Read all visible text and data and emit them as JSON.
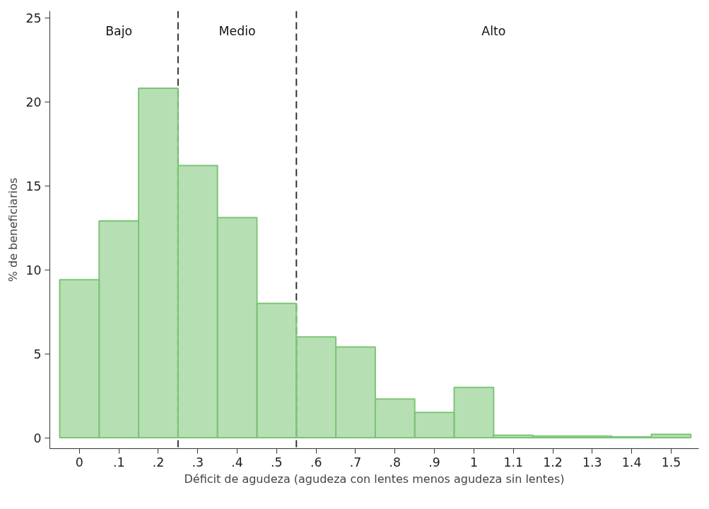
{
  "chart_data": {
    "type": "histogram",
    "xlabel": "Déficit de agudeza (agudeza con lentes menos agudeza sin lentes)",
    "ylabel": "% de beneficiarios",
    "bins": [
      -0.05,
      0.05,
      0.15,
      0.25,
      0.35,
      0.45,
      0.55,
      0.65,
      0.75,
      0.85,
      0.95,
      1.05,
      1.15,
      1.25,
      1.35,
      1.45,
      1.55
    ],
    "values": [
      9.4,
      12.9,
      20.8,
      16.2,
      13.1,
      8.0,
      6.0,
      5.4,
      2.3,
      1.5,
      3.0,
      0.15,
      0.1,
      0.1,
      0.05,
      0.2
    ],
    "color": "#7cc576",
    "xlim": [
      -0.075,
      1.57
    ],
    "ylim": [
      -0.65,
      25.4
    ],
    "xticks": [
      0,
      {
        "value": 0.1,
        "label": ".1"
      },
      {
        "value": 0.2,
        "label": ".2"
      },
      {
        "value": 0.3,
        "label": ".3"
      },
      {
        "value": 0.4,
        "label": ".4"
      },
      {
        "value": 0.5,
        "label": ".5"
      },
      {
        "value": 0.6,
        "label": ".6"
      },
      {
        "value": 0.7,
        "label": ".7"
      },
      {
        "value": 0.8,
        "label": ".8"
      },
      {
        "value": 0.9,
        "label": ".9"
      },
      1,
      {
        "value": 1.1,
        "label": "1.1"
      },
      {
        "value": 1.2,
        "label": "1.2"
      },
      {
        "value": 1.3,
        "label": "1.3"
      },
      {
        "value": 1.4,
        "label": "1.4"
      },
      {
        "value": 1.5,
        "label": "1.5"
      }
    ],
    "yticks": [
      0,
      5,
      10,
      15,
      20,
      25
    ],
    "ref_lines": [
      {
        "axis": "x",
        "value": 0.25,
        "color": "#333333",
        "line_style": "dashed"
      },
      {
        "axis": "x",
        "value": 0.55,
        "color": "#333333",
        "line_style": "dashed"
      }
    ],
    "annotations": [
      "Bajo",
      "Medio",
      "Alto"
    ],
    "grid": false
  }
}
